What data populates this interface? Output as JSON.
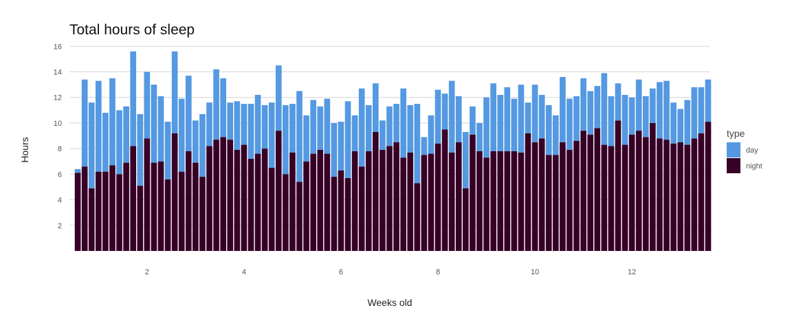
{
  "chart_data": {
    "type": "bar",
    "stacked": true,
    "title": "Total hours of sleep",
    "xlabel": "Weeks old",
    "ylabel": "Hours",
    "xlim": [
      0.4,
      13.6
    ],
    "ylim": [
      0,
      16.5
    ],
    "xticks": [
      2,
      4,
      6,
      8,
      10,
      12
    ],
    "yticks": [
      2,
      4,
      6,
      8,
      10,
      12,
      14,
      16
    ],
    "grid": "horizontal",
    "legend": {
      "title": "type",
      "position": "right"
    },
    "x_start_week": 0.5714,
    "x_step_weeks": 0.142857,
    "series": [
      {
        "name": "night",
        "color": "#370026",
        "values": [
          6.1,
          6.6,
          4.9,
          6.2,
          6.2,
          6.7,
          6.0,
          6.9,
          8.2,
          5.1,
          8.8,
          6.9,
          7.0,
          5.6,
          9.2,
          6.2,
          7.8,
          6.9,
          5.8,
          8.2,
          8.7,
          8.9,
          8.7,
          7.9,
          8.3,
          7.2,
          7.6,
          8.0,
          6.5,
          9.4,
          6.0,
          7.7,
          5.4,
          7.0,
          7.6,
          7.9,
          7.6,
          5.8,
          6.3,
          5.7,
          7.8,
          6.6,
          7.8,
          9.3,
          7.9,
          8.2,
          8.5,
          7.3,
          7.7,
          5.3,
          7.5,
          7.6,
          8.4,
          9.5,
          7.7,
          8.5,
          4.9,
          9.1,
          7.8,
          7.3,
          7.8,
          7.8,
          7.8,
          7.8,
          7.7,
          9.2,
          8.5,
          8.8,
          7.5,
          7.5,
          8.5,
          7.9,
          8.6,
          9.4,
          9.1,
          9.6,
          8.3,
          8.2,
          10.2,
          8.3,
          9.1,
          9.4,
          8.9,
          10.0,
          8.8,
          8.7,
          8.4,
          8.5,
          8.3,
          8.8,
          9.2,
          10.1
        ]
      },
      {
        "name": "day",
        "color": "#5499e2",
        "values": [
          0.3,
          6.8,
          6.7,
          7.1,
          4.6,
          6.8,
          5.0,
          4.4,
          7.4,
          5.6,
          5.2,
          6.1,
          5.1,
          4.5,
          6.4,
          5.7,
          5.9,
          3.3,
          4.9,
          3.4,
          5.5,
          4.6,
          2.9,
          3.8,
          3.2,
          4.3,
          4.6,
          3.4,
          5.1,
          5.1,
          5.4,
          3.8,
          7.1,
          3.6,
          4.2,
          3.4,
          4.3,
          4.2,
          3.8,
          6.0,
          2.8,
          6.1,
          3.6,
          3.8,
          2.3,
          3.1,
          3.0,
          5.4,
          3.7,
          6.2,
          1.4,
          3.0,
          4.2,
          2.8,
          5.6,
          3.6,
          4.4,
          2.2,
          2.2,
          4.7,
          5.3,
          4.4,
          5.0,
          4.1,
          5.3,
          2.4,
          4.5,
          3.4,
          3.9,
          3.1,
          5.1,
          4.0,
          3.5,
          4.1,
          3.4,
          3.3,
          5.6,
          3.9,
          2.9,
          3.9,
          2.9,
          4.0,
          3.2,
          2.7,
          4.4,
          4.6,
          3.2,
          2.6,
          3.5,
          4.0,
          3.6,
          3.3
        ]
      }
    ]
  }
}
